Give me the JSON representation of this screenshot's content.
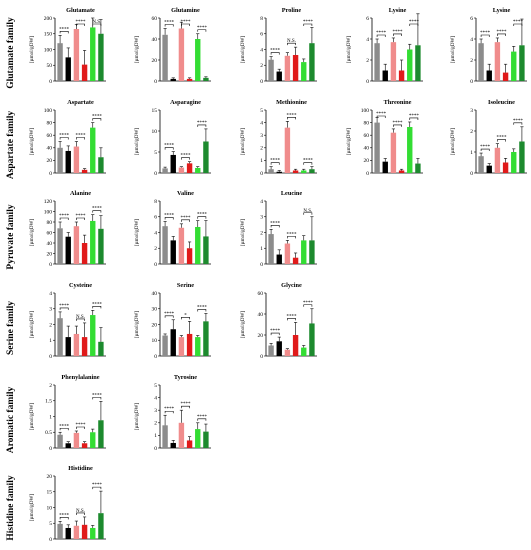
{
  "families": [
    {
      "id": "glutamate",
      "label": "Glutamate family",
      "row": 0
    },
    {
      "id": "aspartate",
      "label": "Aspartate family",
      "row": 1
    },
    {
      "id": "pyruvate",
      "label": "Pyruvate family",
      "row": 2
    },
    {
      "id": "serine",
      "label": "Serine family",
      "row": 3
    },
    {
      "id": "aromatic",
      "label": "Aromatic family",
      "row": 4
    },
    {
      "id": "histidine",
      "label": "Histidine family",
      "row": 5
    }
  ],
  "colors": [
    "#8c8c8c",
    "#000000",
    "#f08c8c",
    "#e01a1a",
    "#33dd33",
    "#1d8a2e"
  ],
  "chart_data": [
    {
      "type": "bar",
      "title": "Glutamate",
      "ylabel": "[µmol/gDW]",
      "ylim": [
        0,
        200
      ],
      "yticks": [
        0,
        50,
        100,
        150,
        200
      ],
      "row": 0,
      "col": 0,
      "values": [
        120,
        75,
        165,
        52,
        170,
        150
      ],
      "errors": [
        25,
        30,
        15,
        45,
        30,
        45
      ],
      "sig": [
        {
          "a": 0,
          "b": 1,
          "label": "****"
        },
        {
          "a": 2,
          "b": 3,
          "label": "****"
        },
        {
          "a": 4,
          "b": 5,
          "label": "N.S."
        }
      ]
    },
    {
      "type": "bar",
      "title": "Glutamine",
      "ylabel": "[µmol/gDW]",
      "ylim": [
        0,
        60
      ],
      "yticks": [
        0,
        20,
        40,
        60
      ],
      "row": 0,
      "col": 1,
      "values": [
        44,
        2,
        50,
        2,
        40,
        3
      ],
      "errors": [
        6,
        1,
        6,
        1,
        5,
        1
      ],
      "sig": [
        {
          "a": 0,
          "b": 1,
          "label": "****"
        },
        {
          "a": 2,
          "b": 3,
          "label": "****"
        },
        {
          "a": 4,
          "b": 5,
          "label": "****"
        }
      ]
    },
    {
      "type": "bar",
      "title": "Proline",
      "ylabel": "[µmol/gDW]",
      "ylim": [
        0,
        8
      ],
      "yticks": [
        0,
        2,
        4,
        6,
        8
      ],
      "row": 0,
      "col": 2,
      "values": [
        2.7,
        1.2,
        3.2,
        3.3,
        2.4,
        4.8
      ],
      "errors": [
        0.4,
        0.3,
        0.4,
        1.0,
        0.4,
        2.0
      ],
      "sig": [
        {
          "a": 0,
          "b": 1,
          "label": "****"
        },
        {
          "a": 2,
          "b": 3,
          "label": "N.S."
        },
        {
          "a": 4,
          "b": 5,
          "label": "****"
        }
      ]
    },
    {
      "type": "bar",
      "title": "Lysine",
      "ylabel": "[µmol/gDW]",
      "ylim": [
        0,
        6
      ],
      "yticks": [
        0,
        2,
        4,
        6
      ],
      "row": 0,
      "col": 3,
      "values": [
        3.6,
        1.0,
        3.7,
        1.0,
        3.0,
        3.4
      ],
      "errors": [
        0.4,
        0.6,
        0.4,
        1.0,
        0.5,
        3.0
      ],
      "sig": [
        {
          "a": 0,
          "b": 1,
          "label": "****"
        },
        {
          "a": 2,
          "b": 3,
          "label": "****"
        },
        {
          "a": 4,
          "b": 5,
          "label": "****"
        }
      ]
    },
    {
      "type": "bar",
      "title": "Lysine",
      "ylabel": "[µmol/gDW]",
      "ylim": [
        0,
        6
      ],
      "yticks": [
        0,
        2,
        4,
        6
      ],
      "row": 0,
      "col": 4,
      "values": [
        3.6,
        1.0,
        3.7,
        0.8,
        2.8,
        3.4
      ],
      "errors": [
        0.4,
        0.6,
        0.4,
        0.8,
        0.5,
        2.5
      ],
      "sig": [
        {
          "a": 0,
          "b": 1,
          "label": "****"
        },
        {
          "a": 2,
          "b": 3,
          "label": "****"
        },
        {
          "a": 4,
          "b": 5,
          "label": "****"
        }
      ]
    },
    {
      "type": "bar",
      "title": "Aspartate",
      "ylabel": "[µmol/gDW]",
      "ylim": [
        0,
        100
      ],
      "yticks": [
        0,
        20,
        40,
        60,
        80,
        100
      ],
      "row": 1,
      "col": 0,
      "values": [
        40,
        35,
        42,
        5,
        72,
        25
      ],
      "errors": [
        10,
        8,
        8,
        2,
        8,
        15
      ],
      "sig": [
        {
          "a": 0,
          "b": 1,
          "label": "****"
        },
        {
          "a": 2,
          "b": 3,
          "label": "****"
        },
        {
          "a": 4,
          "b": 5,
          "label": "****"
        }
      ]
    },
    {
      "type": "bar",
      "title": "Asparagine",
      "ylabel": "[µmol/gDW]",
      "ylim": [
        0,
        15
      ],
      "yticks": [
        0,
        5,
        10,
        15
      ],
      "row": 1,
      "col": 1,
      "values": [
        1.1,
        4.3,
        1.3,
        2.3,
        1.2,
        7.5
      ],
      "errors": [
        0.3,
        0.8,
        0.2,
        0.4,
        0.3,
        3.0
      ],
      "sig": [
        {
          "a": 0,
          "b": 1,
          "label": "****"
        },
        {
          "a": 2,
          "b": 3,
          "label": "****"
        },
        {
          "a": 4,
          "b": 5,
          "label": "****"
        }
      ]
    },
    {
      "type": "bar",
      "title": "Methionine",
      "ylabel": "[µmol/gDW]",
      "ylim": [
        0,
        5
      ],
      "yticks": [
        0,
        1,
        2,
        3,
        4,
        5
      ],
      "row": 1,
      "col": 2,
      "values": [
        0.3,
        0.1,
        3.6,
        0.2,
        0.2,
        0.3
      ],
      "errors": [
        0.2,
        0.1,
        0.5,
        0.1,
        0.1,
        0.2
      ],
      "sig": [
        {
          "a": 0,
          "b": 1,
          "label": "****"
        },
        {
          "a": 2,
          "b": 3,
          "label": "****"
        },
        {
          "a": 4,
          "b": 5,
          "label": "****"
        }
      ]
    },
    {
      "type": "bar",
      "title": "Threonine",
      "ylabel": "[µmol/gDW]",
      "ylim": [
        0,
        100
      ],
      "yticks": [
        0,
        20,
        40,
        60,
        80,
        100
      ],
      "row": 1,
      "col": 3,
      "values": [
        80,
        18,
        64,
        4,
        73,
        15
      ],
      "errors": [
        8,
        5,
        6,
        2,
        8,
        8
      ],
      "sig": [
        {
          "a": 0,
          "b": 1,
          "label": "****"
        },
        {
          "a": 2,
          "b": 3,
          "label": "****"
        },
        {
          "a": 4,
          "b": 5,
          "label": "****"
        }
      ]
    },
    {
      "type": "bar",
      "title": "Isoleucine",
      "ylabel": "[µmol/gDW]",
      "ylim": [
        0,
        3
      ],
      "yticks": [
        0,
        1,
        2,
        3
      ],
      "row": 1,
      "col": 4,
      "values": [
        0.8,
        0.35,
        1.2,
        0.5,
        1.0,
        1.5
      ],
      "errors": [
        0.15,
        0.1,
        0.2,
        0.2,
        0.15,
        0.7
      ],
      "sig": [
        {
          "a": 0,
          "b": 1,
          "label": "****"
        },
        {
          "a": 2,
          "b": 3,
          "label": "****"
        },
        {
          "a": 4,
          "b": 5,
          "label": "****"
        }
      ]
    },
    {
      "type": "bar",
      "title": "Alanine",
      "ylabel": "[µmol/gDW]",
      "ylim": [
        0,
        120
      ],
      "yticks": [
        0,
        20,
        40,
        60,
        80,
        100,
        120
      ],
      "row": 2,
      "col": 0,
      "values": [
        68,
        52,
        72,
        40,
        82,
        67
      ],
      "errors": [
        12,
        8,
        8,
        15,
        12,
        25
      ],
      "sig": [
        {
          "a": 0,
          "b": 1,
          "label": "****"
        },
        {
          "a": 2,
          "b": 3,
          "label": "****"
        },
        {
          "a": 4,
          "b": 5,
          "label": "****"
        }
      ]
    },
    {
      "type": "bar",
      "title": "Valine",
      "ylabel": "[µmol/gDW]",
      "ylim": [
        0,
        8
      ],
      "yticks": [
        0,
        2,
        4,
        6,
        8
      ],
      "row": 2,
      "col": 1,
      "values": [
        4.8,
        3.0,
        4.6,
        2.0,
        4.7,
        3.5
      ],
      "errors": [
        0.6,
        0.5,
        0.5,
        0.8,
        0.8,
        2.0
      ],
      "sig": [
        {
          "a": 0,
          "b": 1,
          "label": "****"
        },
        {
          "a": 2,
          "b": 3,
          "label": "****"
        },
        {
          "a": 4,
          "b": 5,
          "label": "****"
        }
      ]
    },
    {
      "type": "bar",
      "title": "Leucine",
      "ylabel": "[µmol/gDW]",
      "ylim": [
        0,
        4
      ],
      "yticks": [
        0,
        1,
        2,
        3,
        4
      ],
      "row": 2,
      "col": 2,
      "values": [
        1.9,
        0.6,
        1.3,
        0.4,
        1.5,
        1.5
      ],
      "errors": [
        0.3,
        0.3,
        0.2,
        0.3,
        0.3,
        1.5
      ],
      "sig": [
        {
          "a": 0,
          "b": 1,
          "label": "****"
        },
        {
          "a": 2,
          "b": 3,
          "label": "****"
        },
        {
          "a": 4,
          "b": 5,
          "label": "N.S."
        }
      ]
    },
    {
      "type": "bar",
      "title": "Cysteine",
      "ylabel": "[µmol/gDW]",
      "ylim": [
        0,
        4
      ],
      "yticks": [
        0,
        1,
        2,
        3,
        4
      ],
      "row": 3,
      "col": 0,
      "values": [
        2.4,
        1.2,
        1.4,
        1.2,
        2.6,
        0.9
      ],
      "errors": [
        0.4,
        0.7,
        0.5,
        0.9,
        0.3,
        0.9
      ],
      "sig": [
        {
          "a": 0,
          "b": 1,
          "label": "****"
        },
        {
          "a": 2,
          "b": 3,
          "label": "N.S."
        },
        {
          "a": 4,
          "b": 5,
          "label": "****"
        }
      ]
    },
    {
      "type": "bar",
      "title": "Serine",
      "ylabel": "[µmol/gDW]",
      "ylim": [
        0,
        40
      ],
      "yticks": [
        0,
        10,
        20,
        30,
        40
      ],
      "row": 3,
      "col": 1,
      "values": [
        13,
        17,
        12,
        14,
        12,
        22
      ],
      "errors": [
        1,
        6,
        1,
        8,
        1,
        5
      ],
      "sig": [
        {
          "a": 0,
          "b": 1,
          "label": "****"
        },
        {
          "a": 2,
          "b": 3,
          "label": "*"
        },
        {
          "a": 4,
          "b": 5,
          "label": "****"
        }
      ]
    },
    {
      "type": "bar",
      "title": "Glycine",
      "ylabel": "[µmol/gDW]",
      "ylim": [
        0,
        60
      ],
      "yticks": [
        0,
        20,
        40,
        60
      ],
      "row": 3,
      "col": 2,
      "values": [
        10,
        14,
        6,
        20,
        8,
        31
      ],
      "errors": [
        2,
        4,
        1,
        12,
        2,
        14
      ],
      "sig": [
        {
          "a": 0,
          "b": 1,
          "label": "****"
        },
        {
          "a": 2,
          "b": 3,
          "label": "****"
        },
        {
          "a": 4,
          "b": 5,
          "label": "****"
        }
      ]
    },
    {
      "type": "bar",
      "title": "Phenylalanine",
      "ylabel": "[µmol/gDW]",
      "ylim": [
        0,
        2
      ],
      "yticks": [
        0,
        0.5,
        1,
        1.5,
        2
      ],
      "row": 4,
      "col": 0,
      "values": [
        0.42,
        0.15,
        0.48,
        0.15,
        0.5,
        0.88
      ],
      "errors": [
        0.08,
        0.05,
        0.06,
        0.05,
        0.1,
        0.6
      ],
      "sig": [
        {
          "a": 0,
          "b": 1,
          "label": "****"
        },
        {
          "a": 2,
          "b": 3,
          "label": "****"
        },
        {
          "a": 4,
          "b": 5,
          "label": "****"
        }
      ]
    },
    {
      "type": "bar",
      "title": "Tyrosine",
      "ylabel": "[µmol/gDW]",
      "ylim": [
        0,
        5
      ],
      "yticks": [
        0,
        1,
        2,
        3,
        4,
        5
      ],
      "row": 4,
      "col": 1,
      "values": [
        1.8,
        0.4,
        2.0,
        0.6,
        1.5,
        1.3
      ],
      "errors": [
        0.8,
        0.2,
        1.0,
        0.3,
        0.5,
        0.6
      ],
      "sig": [
        {
          "a": 0,
          "b": 1,
          "label": "****"
        },
        {
          "a": 2,
          "b": 3,
          "label": "****"
        },
        {
          "a": 4,
          "b": 5,
          "label": "****"
        }
      ]
    },
    {
      "type": "bar",
      "title": "Histidine",
      "ylabel": "[µmol/gDW]",
      "ylim": [
        0,
        20
      ],
      "yticks": [
        0,
        5,
        10,
        15,
        20
      ],
      "row": 5,
      "col": 0,
      "values": [
        4.8,
        3.5,
        4.2,
        4.5,
        3.5,
        8.2
      ],
      "errors": [
        0.8,
        1.0,
        1.5,
        2.5,
        0.8,
        7.0
      ],
      "sig": [
        {
          "a": 0,
          "b": 1,
          "label": "****"
        },
        {
          "a": 2,
          "b": 3,
          "label": "N.S."
        },
        {
          "a": 4,
          "b": 5,
          "label": "****"
        }
      ]
    }
  ]
}
